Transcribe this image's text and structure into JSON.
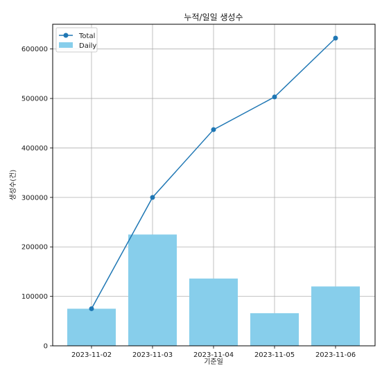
{
  "chart_data": {
    "type": "bar",
    "title": "누적/일일 생성수",
    "xlabel": "기준일",
    "ylabel": "생성수(건)",
    "categories": [
      "2023-11-02",
      "2023-11-03",
      "2023-11-04",
      "2023-11-05",
      "2023-11-06"
    ],
    "series": [
      {
        "name": "Total",
        "type": "line",
        "values": [
          75000,
          300000,
          437000,
          503000,
          622000
        ],
        "color": "#1f77b4"
      },
      {
        "name": "Daily",
        "type": "bar",
        "values": [
          75000,
          225000,
          136000,
          66000,
          120000
        ],
        "color": "#87ceeb"
      }
    ],
    "ylim": [
      0,
      650000
    ],
    "yticks": [
      0,
      100000,
      200000,
      300000,
      400000,
      500000,
      600000
    ],
    "grid": true,
    "legend": "top-left"
  }
}
